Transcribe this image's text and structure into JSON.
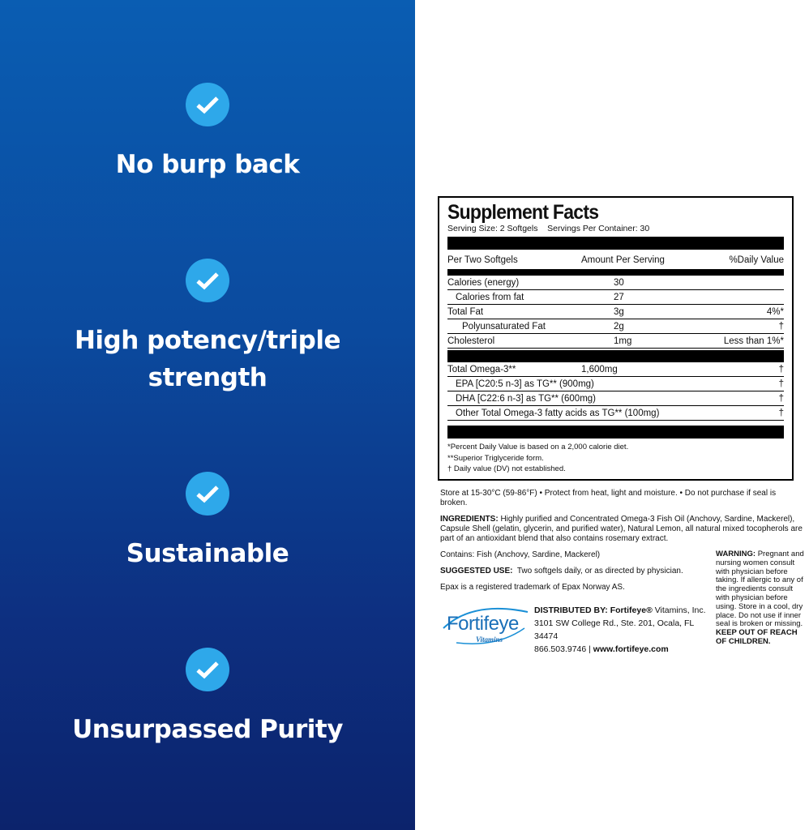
{
  "features": [
    {
      "icon": "check-icon",
      "label": "No burp back"
    },
    {
      "icon": "check-icon",
      "label": "High potency/triple strength"
    },
    {
      "icon": "check-icon",
      "label": "Sustainable"
    },
    {
      "icon": "check-icon",
      "label": "Unsurpassed Purity"
    }
  ],
  "facts": {
    "title": "Supplement Facts",
    "serving": "Serving Size: 2 Softgels    Servings Per Container: 30",
    "headers": [
      "Per Two Softgels",
      "Amount Per Serving",
      "%Daily Value"
    ],
    "rows1": [
      {
        "name": "Calories (energy)",
        "amount": "30",
        "dv": ""
      },
      {
        "name": "Calories from fat",
        "amount": "27",
        "dv": ""
      },
      {
        "name": "Total Fat",
        "amount": "3g",
        "dv": "4%*"
      },
      {
        "name": "Polyunsaturated Fat",
        "amount": "2g",
        "dv": "†"
      },
      {
        "name": "Cholesterol",
        "amount": "1mg",
        "dv": "Less than 1%*"
      }
    ],
    "rows2": [
      {
        "name": "Total Omega-3**",
        "amount": "1,600mg",
        "dv": "†"
      },
      {
        "name": "EPA [C20:5 n-3] as TG** (900mg)",
        "amount": "",
        "dv": "†"
      },
      {
        "name": "DHA [C22:6 n-3] as TG** (600mg)",
        "amount": "",
        "dv": "†"
      },
      {
        "name": "Other Total Omega-3 fatty acids as TG** (100mg)",
        "amount": "",
        "dv": "†"
      }
    ],
    "footnotes": [
      "*Percent Daily Value is based on a 2,000 calorie diet.",
      "**Superior Triglyceride form.",
      "† Daily value (DV) not established."
    ]
  },
  "storage": "Store at 15-30°C (59-86°F)  •  Protect from heat, light and moisture.  •  Do not purchase if seal is broken.",
  "ingredients_label": "INGREDIENTS:",
  "ingredients": " Highly purified and Concentrated Omega-3 Fish Oil (Anchovy, Sardine, Mackerel), Capsule Shell (gelatin, glycerin, and purified water), Natural Lemon, all natural mixed tocopherols are part of an antioxidant blend that also contains rosemary extract.",
  "contains": "Contains: Fish (Anchovy, Sardine, Mackerel)",
  "suggested_label": "SUGGESTED USE:",
  "suggested": "  Two softgels daily, or as directed by physician.",
  "trademark": "Epax is a registered trademark of Epax Norway AS.",
  "warning_label": "WARNING:",
  "warning": " Pregnant and nursing women consult with physician before taking. If allergic to any of the ingredients consult with physician before using. Store in a cool, dry place. Do not use if inner seal is broken or missing. ",
  "warning_bold": "KEEP OUT OF REACH OF CHILDREN.",
  "logo": {
    "main": "Fortifeye",
    "sub": "Vitamins"
  },
  "distributor": {
    "label": "DISTRIBUTED BY: Fortifeye®",
    "rest": " Vitamins, Inc.",
    "address": "3101 SW College Rd., Ste. 201, Ocala, FL 34474",
    "phone": "866.503.9746 | ",
    "web": "www.fortifeye.com"
  },
  "colors": {
    "panel_top": "#0a5db2",
    "panel_bottom": "#0c236c",
    "check": "#2ea8ea",
    "brand": "#1a8fd6"
  }
}
